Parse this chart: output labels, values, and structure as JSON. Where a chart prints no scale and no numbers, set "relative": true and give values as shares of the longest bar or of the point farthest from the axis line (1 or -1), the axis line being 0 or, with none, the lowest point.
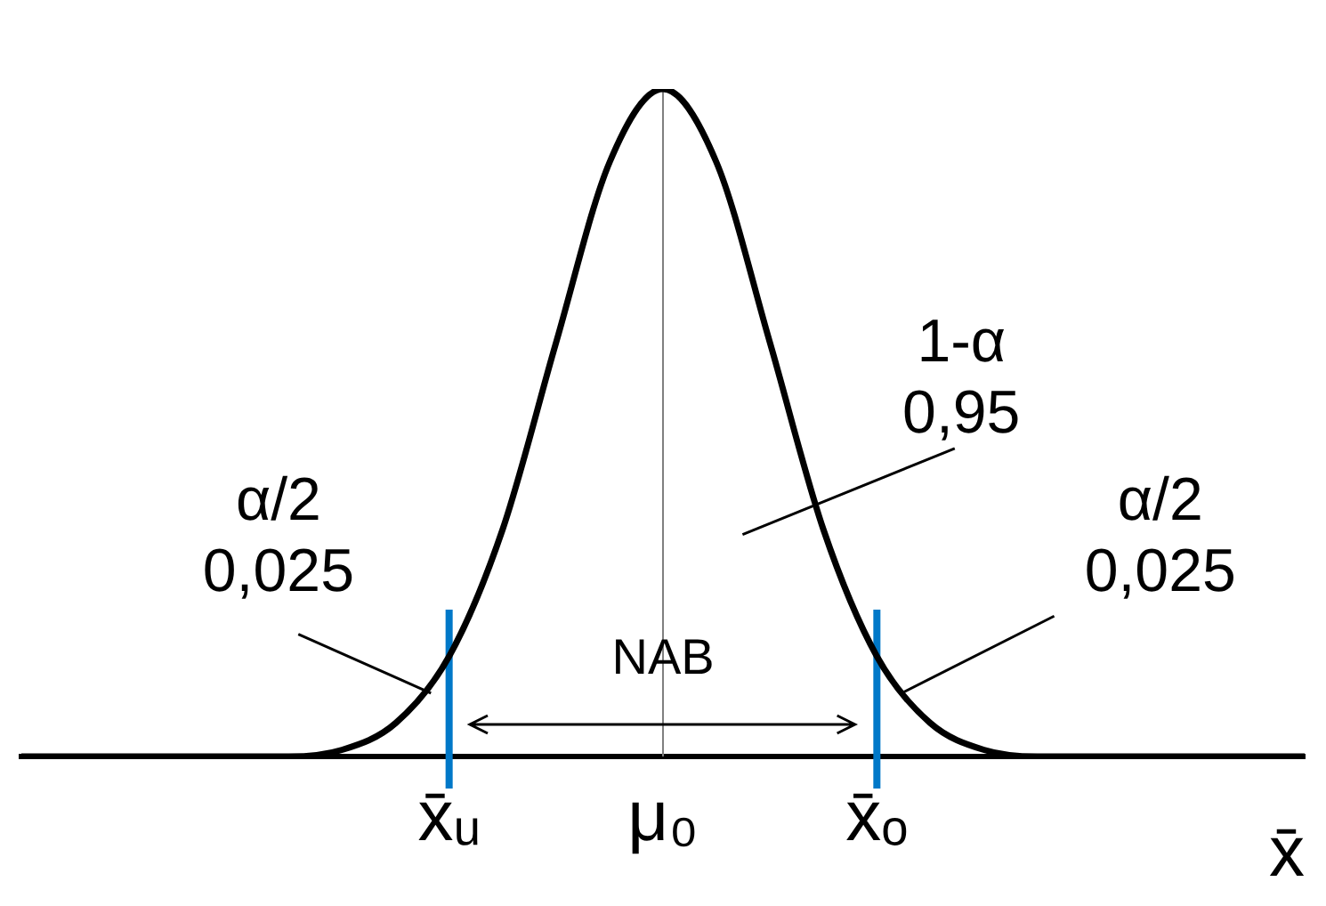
{
  "chart_data": {
    "type": "line",
    "relative": true,
    "xlabel": "x̄",
    "categories": [
      null,
      null,
      null,
      null,
      null,
      null,
      null,
      null,
      "x̄ᵤ",
      null,
      null,
      null,
      "μ₀",
      null,
      null,
      null,
      "x̄ₒ",
      null,
      null,
      null,
      null,
      null,
      null,
      null,
      null
    ],
    "series": [
      {
        "color": "#000000",
        "values": [
          0,
          0,
          0,
          0,
          0,
          0,
          0.01,
          0.05,
          0.15,
          0.34,
          0.62,
          0.89,
          1,
          0.89,
          0.62,
          0.34,
          0.15,
          0.05,
          0.01,
          0,
          0,
          0,
          0,
          0,
          0
        ]
      }
    ],
    "ref_lines": [
      {
        "axis": "x",
        "value": "x̄ᵤ",
        "color": "#0078c8"
      },
      {
        "axis": "x",
        "value": "μ₀",
        "color": "#808080"
      },
      {
        "axis": "x",
        "value": "x̄ₒ",
        "color": "#0078c8"
      }
    ],
    "annotations": [
      "α/2\n0,025",
      "1-α\n0,95",
      "α/2\n0,025",
      "NAB"
    ],
    "grid": false,
    "legend": false,
    "marker": "none",
    "line_style": "solid"
  }
}
